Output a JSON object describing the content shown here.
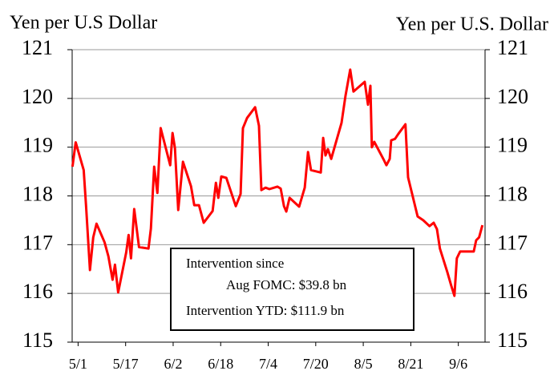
{
  "chart_data": {
    "type": "line",
    "title_left": "Yen per U.S Dollar",
    "title_right": "Yen per U.S. Dollar",
    "x": [
      -1.9,
      -0.8,
      1.9,
      2.7,
      4.0,
      5.1,
      6.2,
      8.9,
      10.2,
      11.6,
      12.4,
      13.5,
      16.2,
      17.0,
      17.8,
      18.9,
      20.5,
      23.7,
      24.5,
      25.6,
      26.7,
      27.8,
      31.0,
      31.8,
      32.6,
      33.7,
      35.3,
      38.0,
      39.1,
      40.7,
      42.3,
      45.3,
      46.4,
      47.2,
      48.2,
      49.9,
      53.1,
      54.7,
      55.5,
      56.9,
      59.6,
      60.9,
      61.7,
      63.1,
      64.4,
      67.1,
      68.2,
      69.3,
      70.1,
      71.2,
      74.4,
      76.3,
      77.4,
      78.4,
      81.7,
      82.5,
      83.3,
      84.1,
      85.2,
      88.7,
      90.0,
      91.6,
      92.7,
      96.5,
      97.6,
      98.4,
      98.9,
      99.7,
      103.0,
      103.8,
      104.9,
      105.4,
      106.7,
      107.8,
      110.2,
      111.1,
      114.3,
      116.2,
      118.3,
      119.7,
      120.8,
      121.8,
      124.3,
      125.6,
      126.7,
      127.5,
      128.6,
      133.2,
      134.0,
      135.0,
      136.1
    ],
    "values": [
      118.6,
      119.1,
      118.53,
      117.78,
      116.48,
      117.15,
      117.43,
      117.05,
      116.76,
      116.28,
      116.59,
      116.02,
      116.84,
      117.2,
      116.72,
      117.73,
      116.95,
      116.92,
      117.33,
      118.6,
      118.06,
      119.39,
      118.63,
      119.29,
      118.98,
      117.71,
      118.7,
      118.2,
      117.81,
      117.81,
      117.45,
      117.69,
      118.27,
      117.96,
      118.4,
      118.37,
      117.79,
      118.04,
      119.39,
      119.6,
      119.82,
      119.44,
      118.12,
      118.17,
      118.14,
      118.19,
      118.15,
      117.79,
      117.68,
      117.96,
      117.78,
      118.17,
      118.9,
      118.53,
      118.48,
      119.19,
      118.83,
      118.96,
      118.76,
      119.5,
      120.05,
      120.59,
      120.14,
      120.34,
      119.87,
      120.26,
      119.0,
      119.11,
      118.73,
      118.63,
      118.76,
      119.14,
      119.17,
      119.27,
      119.47,
      118.38,
      117.58,
      117.5,
      117.38,
      117.45,
      117.32,
      116.92,
      116.44,
      116.16,
      115.95,
      116.72,
      116.86,
      116.86,
      117.09,
      117.15,
      117.4
    ],
    "color": "#ff0000",
    "xlim": [
      -2,
      137
    ],
    "xticks": [
      {
        "value": 0,
        "label": "5/1"
      },
      {
        "value": 16,
        "label": "5/17"
      },
      {
        "value": 32,
        "label": "6/2"
      },
      {
        "value": 48,
        "label": "6/18"
      },
      {
        "value": 64,
        "label": "7/4"
      },
      {
        "value": 80,
        "label": "7/20"
      },
      {
        "value": 96,
        "label": "8/5"
      },
      {
        "value": 112,
        "label": "8/21"
      },
      {
        "value": 128,
        "label": "9/6"
      }
    ],
    "ylim": [
      115,
      121
    ],
    "yticks": [
      115,
      116,
      117,
      118,
      119,
      120,
      121
    ],
    "y2lim": [
      115,
      121
    ],
    "y2ticks": [
      115,
      116,
      117,
      118,
      119,
      120,
      121
    ],
    "grid": true,
    "annotations": [
      "Intervention since",
      "Aug FOMC: $39.8 bn",
      "Intervention YTD: $111.9  bn"
    ]
  }
}
